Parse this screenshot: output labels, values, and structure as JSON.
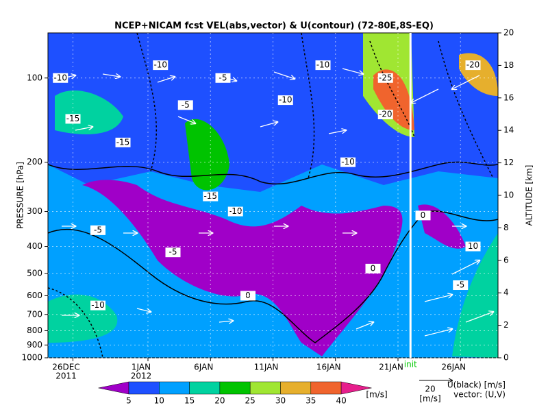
{
  "chart_data": {
    "type": "contour",
    "title": "NCEP+NICAM fcst VEL(abs,vector) & U(contour)   (72-80E,8S-EQ)",
    "y_label": "PRESSURE [hPa]",
    "y2_label": "ALTITUDE [km]",
    "log_y": true,
    "ylim": [
      1000,
      69
    ],
    "yticks": [
      100,
      200,
      300,
      400,
      500,
      600,
      700,
      800,
      900,
      1000
    ],
    "y2lim": [
      0,
      20
    ],
    "y2ticks": [
      0,
      2,
      4,
      6,
      8,
      10,
      12,
      14,
      16,
      18,
      20
    ],
    "xlim": [
      "2011-12-24",
      "2012-01-29"
    ],
    "xticks": [
      {
        "value": "2011-12-26",
        "label": "26DEC"
      },
      {
        "value": "2012-01-01",
        "label": "1JAN"
      },
      {
        "value": "2012-01-06",
        "label": "6JAN"
      },
      {
        "value": "2012-01-11",
        "label": "11JAN"
      },
      {
        "value": "2012-01-16",
        "label": "16JAN"
      },
      {
        "value": "2012-01-21",
        "label": "21JAN"
      },
      {
        "value": "2012-01-26",
        "label": "26JAN"
      }
    ],
    "x_year_labels": [
      {
        "value": "2011-12-26",
        "label": "2011"
      },
      {
        "value": "2012-01-01",
        "label": "2012"
      }
    ],
    "init": {
      "value": "2012-01-22",
      "label": "init"
    },
    "contour_labels": [
      {
        "x": "2011-12-25",
        "p": 100,
        "value": -10
      },
      {
        "x": "2011-12-26",
        "p": 140,
        "value": -15
      },
      {
        "x": "2011-12-30",
        "p": 170,
        "value": -15
      },
      {
        "x": "2012-01-02",
        "p": 90,
        "value": -10
      },
      {
        "x": "2012-01-04",
        "p": 125,
        "value": -5
      },
      {
        "x": "2012-01-06",
        "p": 265,
        "value": -15
      },
      {
        "x": "2012-01-07",
        "p": 100,
        "value": -5
      },
      {
        "x": "2012-01-08",
        "p": 300,
        "value": -10
      },
      {
        "x": "2012-01-12",
        "p": 120,
        "value": -10
      },
      {
        "x": "2012-01-15",
        "p": 90,
        "value": -10
      },
      {
        "x": "2012-01-17",
        "p": 200,
        "value": -10
      },
      {
        "x": "2012-01-20",
        "p": 100,
        "value": -25
      },
      {
        "x": "2012-01-20",
        "p": 135,
        "value": -20
      },
      {
        "x": "2012-01-27",
        "p": 90,
        "value": -20
      },
      {
        "x": "2012-01-03",
        "p": 420,
        "value": -5
      },
      {
        "x": "2011-12-28",
        "p": 350,
        "value": -5
      },
      {
        "x": "2011-12-28",
        "p": 650,
        "value": -10
      },
      {
        "x": "2012-01-09",
        "p": 600,
        "value": 0
      },
      {
        "x": "2012-01-19",
        "p": 480,
        "value": 0
      },
      {
        "x": "2012-01-23",
        "p": 310,
        "value": 0
      },
      {
        "x": "2012-01-26",
        "p": 550,
        "value": -5
      },
      {
        "x": "2012-01-27",
        "p": 400,
        "value": 10
      }
    ],
    "colorbar": {
      "levels": [
        5,
        10,
        15,
        20,
        25,
        30,
        35,
        40
      ],
      "colors": [
        "#a000c8",
        "#1e50ff",
        "#00a0ff",
        "#00d2a0",
        "#00c300",
        "#a0e632",
        "#e6af2d",
        "#f0642d",
        "#e61e8c"
      ],
      "unit": "[m/s]"
    },
    "vector_legend": {
      "value": 20,
      "unit": "[m/s]",
      "contour_note": "U(black) [m/s]",
      "vector_note": "vector: (U,V)"
    }
  }
}
